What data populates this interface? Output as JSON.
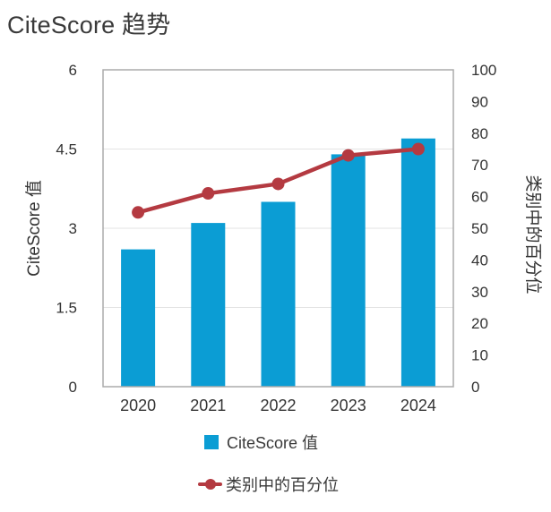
{
  "title": "CiteScore 趋势",
  "colors": {
    "bar": "#0B9DD4",
    "line": "#B43A41",
    "grid": "#E3E3E3",
    "plot_border": "#ABABAB",
    "text": "#333333",
    "title_text": "#3A3A3A"
  },
  "chart_data": {
    "type": "bar+line",
    "title": "CiteScore 趋势",
    "categories": [
      "2020",
      "2021",
      "2022",
      "2023",
      "2024"
    ],
    "series": [
      {
        "name": "CiteScore 值",
        "type": "bar",
        "axis": "left",
        "color": "#0B9DD4",
        "values": [
          2.6,
          3.1,
          3.5,
          4.4,
          4.7
        ]
      },
      {
        "name": "类别中的百分位",
        "type": "line",
        "axis": "right",
        "color": "#B43A41",
        "values": [
          55,
          61,
          64,
          73,
          75
        ]
      }
    ],
    "left_axis": {
      "label": "CiteScore 值",
      "min": 0,
      "max": 6,
      "ticks": [
        0,
        1.5,
        3,
        4.5,
        6
      ]
    },
    "right_axis": {
      "label": "类别中的百分位",
      "min": 0,
      "max": 100,
      "ticks": [
        0,
        10,
        20,
        30,
        40,
        50,
        60,
        70,
        80,
        90,
        100
      ]
    },
    "grid": "horizontal-left-ticks",
    "legend_position": "bottom"
  }
}
